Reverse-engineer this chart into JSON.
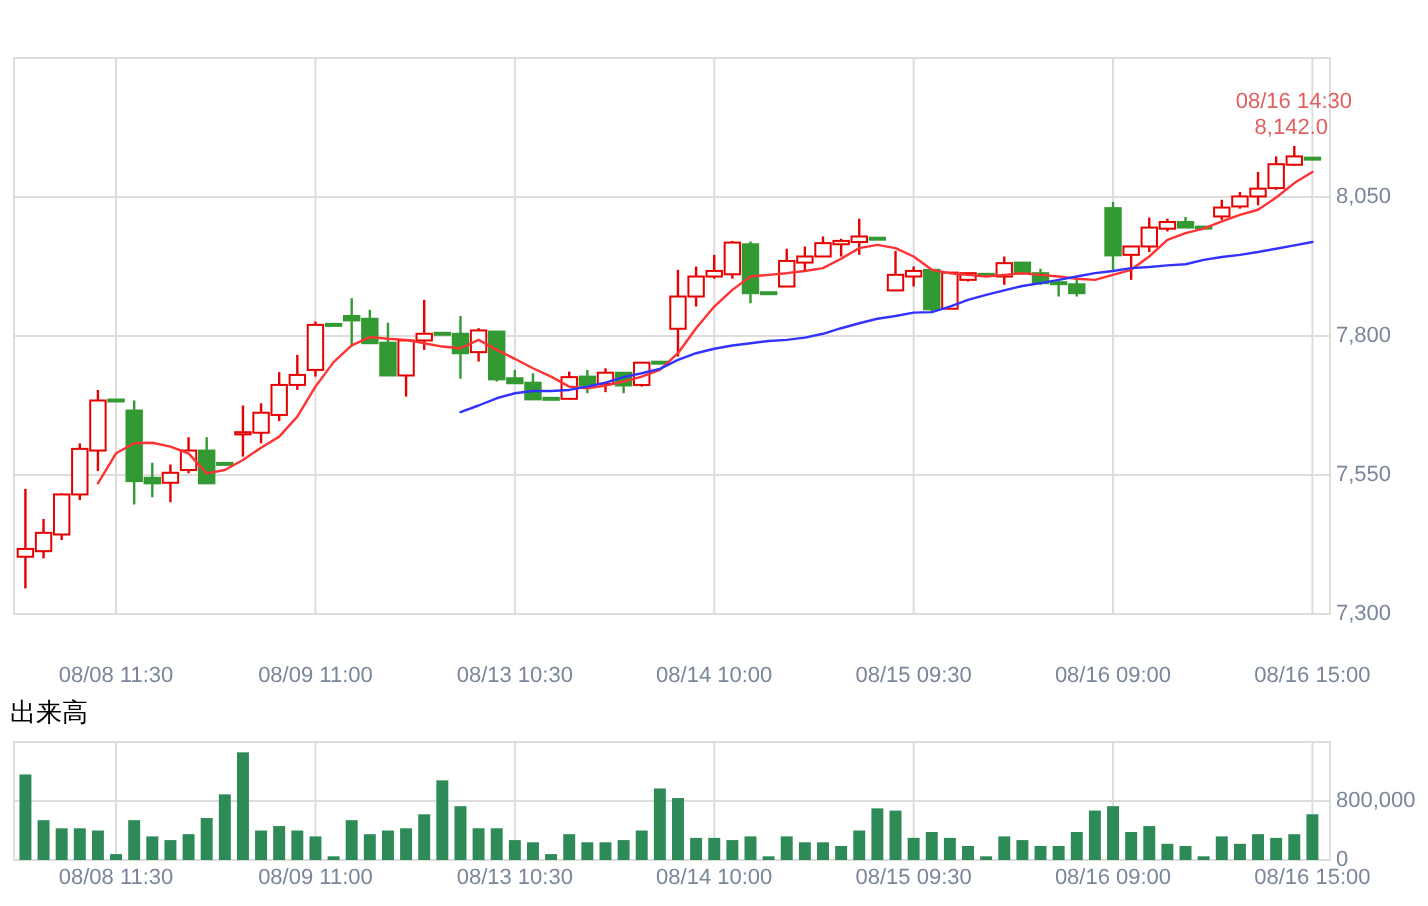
{
  "chart_data": [
    {
      "type": "candlestick",
      "categories": [
        null,
        null,
        null,
        null,
        null,
        "08/08 11:30",
        null,
        null,
        null,
        null,
        null,
        null,
        null,
        null,
        null,
        null,
        "08/09 11:00",
        null,
        null,
        null,
        null,
        null,
        null,
        null,
        null,
        null,
        null,
        "08/13 10:30",
        null,
        null,
        null,
        null,
        null,
        null,
        null,
        null,
        null,
        null,
        "08/14 10:00",
        null,
        null,
        null,
        null,
        null,
        null,
        null,
        null,
        null,
        null,
        "08/15 09:30",
        null,
        null,
        null,
        null,
        null,
        null,
        null,
        null,
        null,
        null,
        "08/16 09:00",
        null,
        null,
        null,
        null,
        null,
        null,
        null,
        null,
        null,
        null,
        "08/16 15:00"
      ],
      "ohlc": [
        [
          7403,
          7525,
          7346,
          7417
        ],
        [
          7413,
          7471,
          7400,
          7446
        ],
        [
          7443,
          7517,
          7433,
          7515
        ],
        [
          7515,
          7607,
          7505,
          7597
        ],
        [
          7594,
          7703,
          7557,
          7684
        ],
        [
          7684,
          7684,
          7684,
          7684
        ],
        [
          7666,
          7684,
          7497,
          7539
        ],
        [
          7545,
          7572,
          7510,
          7535
        ],
        [
          7536,
          7569,
          7501,
          7554
        ],
        [
          7559,
          7618,
          7553,
          7594
        ],
        [
          7594,
          7618,
          7535,
          7535
        ],
        [
          7570,
          7570,
          7570,
          7570
        ],
        [
          7623,
          7675,
          7583,
          7627
        ],
        [
          7626,
          7679,
          7607,
          7662
        ],
        [
          7658,
          7735,
          7647,
          7712
        ],
        [
          7712,
          7766,
          7703,
          7730
        ],
        [
          7739,
          7826,
          7727,
          7820
        ],
        [
          7820,
          7820,
          7820,
          7820
        ],
        [
          7836,
          7868,
          7781,
          7828
        ],
        [
          7831,
          7847,
          7787,
          7787
        ],
        [
          7788,
          7824,
          7729,
          7729
        ],
        [
          7729,
          7792,
          7691,
          7792
        ],
        [
          7792,
          7865,
          7775,
          7804
        ],
        [
          7804,
          7804,
          7804,
          7804
        ],
        [
          7804,
          7836,
          7723,
          7769
        ],
        [
          7771,
          7814,
          7754,
          7810
        ],
        [
          7808,
          7808,
          7718,
          7722
        ],
        [
          7724,
          7739,
          7715,
          7715
        ],
        [
          7716,
          7733,
          7686,
          7686
        ],
        [
          7687,
          7687,
          7687,
          7687
        ],
        [
          7687,
          7736,
          7687,
          7726
        ],
        [
          7727,
          7739,
          7697,
          7711
        ],
        [
          7714,
          7742,
          7699,
          7734
        ],
        [
          7734,
          7734,
          7697,
          7711
        ],
        [
          7712,
          7752,
          7709,
          7752
        ],
        [
          7752,
          7752,
          7752,
          7752
        ],
        [
          7813,
          7919,
          7763,
          7871
        ],
        [
          7871,
          7925,
          7853,
          7907
        ],
        [
          7907,
          7946,
          7903,
          7917
        ],
        [
          7911,
          7971,
          7903,
          7968
        ],
        [
          7965,
          7970,
          7859,
          7877
        ],
        [
          7877,
          7877,
          7877,
          7877
        ],
        [
          7889,
          7957,
          7889,
          7935
        ],
        [
          7932,
          7961,
          7917,
          7943
        ],
        [
          7943,
          7979,
          7943,
          7967
        ],
        [
          7965,
          7975,
          7943,
          7971
        ],
        [
          7969,
          8011,
          7946,
          7979
        ],
        [
          7975,
          7975,
          7975,
          7975
        ],
        [
          7882,
          7953,
          7882,
          7910
        ],
        [
          7907,
          7925,
          7889,
          7917
        ],
        [
          7919,
          7919,
          7841,
          7848
        ],
        [
          7849,
          7914,
          7849,
          7914
        ],
        [
          7901,
          7913,
          7898,
          7913
        ],
        [
          7910,
          7910,
          7910,
          7910
        ],
        [
          7907,
          7943,
          7892,
          7931
        ],
        [
          7932,
          7932,
          7910,
          7913
        ],
        [
          7913,
          7921,
          7892,
          7895
        ],
        [
          7896,
          7901,
          7871,
          7894
        ],
        [
          7893,
          7905,
          7871,
          7877
        ],
        null,
        [
          8030,
          8041,
          7919,
          7945
        ],
        [
          7946,
          7961,
          7901,
          7961
        ],
        [
          7961,
          8013,
          7951,
          7995
        ],
        [
          7993,
          8011,
          7988,
          8005
        ],
        [
          8005,
          8014,
          7995,
          7995
        ],
        [
          7995,
          7995,
          7995,
          7995
        ],
        [
          8015,
          8045,
          8009,
          8031
        ],
        [
          8033,
          8059,
          8029,
          8051
        ],
        [
          8051,
          8095,
          8035,
          8065
        ],
        [
          8066,
          8123,
          8063,
          8109
        ],
        [
          8108,
          8142,
          8106,
          8123
        ],
        [
          8119,
          8119,
          8119,
          8119
        ]
      ],
      "colors": [
        "#e60000",
        "#e60000",
        "#e60000",
        "#e60000",
        "#e60000",
        "#339933",
        "#339933",
        "#339933",
        "#e60000",
        "#e60000",
        "#339933",
        "#339933",
        "#e60000",
        "#e60000",
        "#e60000",
        "#e60000",
        "#e60000",
        "#339933",
        "#339933",
        "#339933",
        "#339933",
        "#e60000",
        "#e60000",
        "#339933",
        "#339933",
        "#e60000",
        "#339933",
        "#339933",
        "#339933",
        "#339933",
        "#e60000",
        "#339933",
        "#e60000",
        "#339933",
        "#e60000",
        "#339933",
        "#e60000",
        "#e60000",
        "#e60000",
        "#e60000",
        "#339933",
        "#339933",
        "#e60000",
        "#e60000",
        "#e60000",
        "#e60000",
        "#e60000",
        "#339933",
        "#e60000",
        "#e60000",
        "#339933",
        "#e60000",
        "#e60000",
        "#339933",
        "#e60000",
        "#339933",
        "#339933",
        "#339933",
        "#339933",
        null,
        "#339933",
        "#e60000",
        "#e60000",
        "#e60000",
        "#339933",
        "#339933",
        "#e60000",
        "#e60000",
        "#e60000",
        "#e60000",
        "#e60000",
        "#339933"
      ],
      "series": [
        {
          "type": "line",
          "color": "#ff3333",
          "values": [
            null,
            null,
            null,
            null,
            7535,
            7589,
            7607,
            7608,
            7601,
            7589,
            7553,
            7559,
            7577,
            7599,
            7619,
            7655,
            7709,
            7753,
            7783,
            7798,
            7795,
            7793,
            7787,
            7781,
            7778,
            7793,
            7775,
            7759,
            7742,
            7727,
            7709,
            7706,
            7711,
            7718,
            7727,
            7739,
            7769,
            7814,
            7853,
            7883,
            7907,
            7910,
            7913,
            7917,
            7922,
            7939,
            7958,
            7964,
            7958,
            7943,
            7919,
            7913,
            7910,
            7907,
            7910,
            7913,
            7910,
            7907,
            7903,
            7901,
            7910,
            7919,
            7943,
            7973,
            7985,
            7993,
            8006,
            8018,
            8027,
            8049,
            8075,
            8095
          ]
        },
        {
          "type": "line",
          "color": "#3333ff",
          "values": [
            null,
            null,
            null,
            null,
            null,
            null,
            null,
            null,
            null,
            null,
            null,
            null,
            null,
            null,
            null,
            null,
            null,
            null,
            null,
            null,
            null,
            null,
            null,
            null,
            7663,
            7675,
            7688,
            7697,
            7701,
            7701,
            7703,
            7709,
            7716,
            7726,
            7733,
            7741,
            7757,
            7769,
            7777,
            7783,
            7787,
            7791,
            7793,
            7797,
            7804,
            7814,
            7823,
            7831,
            7836,
            7842,
            7843,
            7853,
            7865,
            7874,
            7882,
            7890,
            7895,
            7901,
            7907,
            7913,
            7917,
            7922,
            7924,
            7927,
            7929,
            7937,
            7942,
            7946,
            7951,
            7957,
            7963,
            7969
          ]
        }
      ],
      "ylim": [
        7300,
        8300
      ],
      "yticks": [
        {
          "value": 7300,
          "label": "7,300"
        },
        {
          "value": 7550,
          "label": "7,550"
        },
        {
          "value": 7800,
          "label": "7,800"
        },
        {
          "value": 8050,
          "label": "8,050"
        }
      ],
      "grid": true,
      "annotations": [
        "08/16 14:30",
        "8,142.0"
      ]
    },
    {
      "type": "bar",
      "title": "出来高",
      "categories": [
        null,
        null,
        null,
        null,
        null,
        "08/08 11:30",
        null,
        null,
        null,
        null,
        null,
        null,
        null,
        null,
        null,
        null,
        "08/09 11:00",
        null,
        null,
        null,
        null,
        null,
        null,
        null,
        null,
        null,
        null,
        "08/13 10:30",
        null,
        null,
        null,
        null,
        null,
        null,
        null,
        null,
        null,
        null,
        "08/14 10:00",
        null,
        null,
        null,
        null,
        null,
        null,
        null,
        null,
        null,
        null,
        "08/15 09:30",
        null,
        null,
        null,
        null,
        null,
        null,
        null,
        null,
        null,
        null,
        "08/16 09:00",
        null,
        null,
        null,
        null,
        null,
        null,
        null,
        null,
        null,
        null,
        "08/16 15:00"
      ],
      "series": [
        {
          "color": "#2e8b57",
          "values": [
            1160000,
            540000,
            430000,
            430000,
            400000,
            80000,
            540000,
            320000,
            270000,
            350000,
            570000,
            890000,
            1460000,
            400000,
            460000,
            400000,
            320000,
            50000,
            540000,
            350000,
            400000,
            430000,
            620000,
            1080000,
            730000,
            430000,
            430000,
            270000,
            240000,
            80000,
            350000,
            240000,
            240000,
            270000,
            400000,
            970000,
            840000,
            300000,
            300000,
            270000,
            320000,
            50000,
            320000,
            240000,
            240000,
            190000,
            400000,
            700000,
            670000,
            300000,
            380000,
            300000,
            190000,
            50000,
            320000,
            270000,
            190000,
            190000,
            380000,
            670000,
            730000,
            380000,
            460000,
            220000,
            190000,
            50000,
            320000,
            220000,
            350000,
            300000,
            350000,
            620000
          ]
        }
      ],
      "ylim": [
        0,
        1600000
      ],
      "yticks": [
        {
          "value": 0,
          "label": "0"
        },
        {
          "value": 800000,
          "label": "800,000"
        }
      ],
      "grid": true
    }
  ]
}
